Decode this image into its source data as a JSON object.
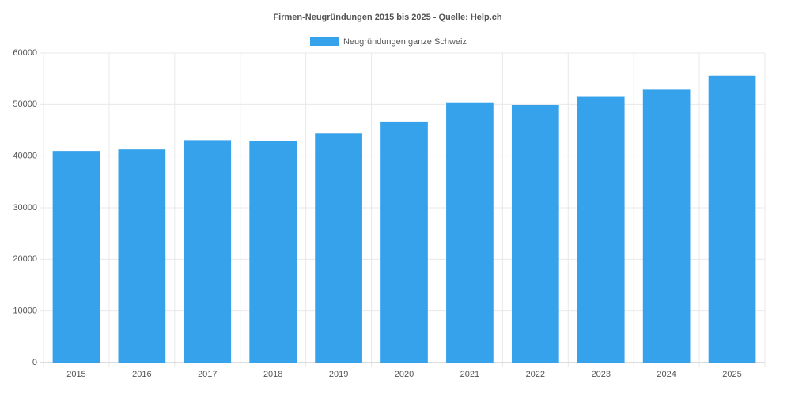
{
  "chart_data": {
    "type": "bar",
    "title": "Firmen-Neugründungen 2015 bis 2025  - Quelle: Help.ch",
    "categories": [
      "2015",
      "2016",
      "2017",
      "2018",
      "2019",
      "2020",
      "2021",
      "2022",
      "2023",
      "2024",
      "2025"
    ],
    "series": [
      {
        "name": "Neugründungen ganze Schweiz",
        "color": "#36a2eb",
        "values": [
          41000,
          41300,
          43100,
          43000,
          44500,
          46700,
          50400,
          49900,
          51500,
          52900,
          55600
        ]
      }
    ],
    "ylim": [
      0,
      60000
    ],
    "yticks": [
      0,
      10000,
      20000,
      30000,
      40000,
      50000,
      60000
    ],
    "grid": true
  }
}
